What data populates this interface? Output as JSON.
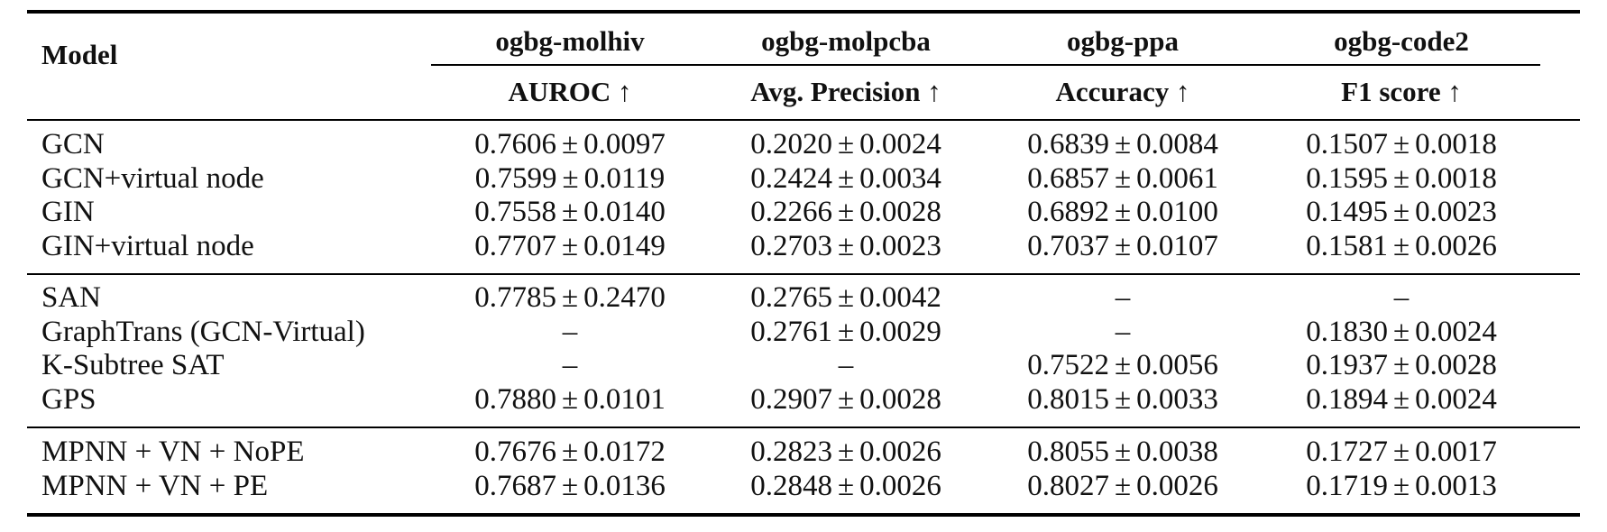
{
  "table": {
    "header": {
      "model_label": "Model",
      "datasets": [
        "ogbg-molhiv",
        "ogbg-molpcba",
        "ogbg-ppa",
        "ogbg-code2"
      ],
      "metrics": [
        "AUROC ↑",
        "Avg. Precision ↑",
        "Accuracy ↑",
        "F1 score ↑"
      ]
    },
    "pm_symbol": "±",
    "dash": "–",
    "groups": [
      {
        "rows": [
          {
            "model": "GCN",
            "cells": [
              [
                "0.7606",
                "0.0097"
              ],
              [
                "0.2020",
                "0.0024"
              ],
              [
                "0.6839",
                "0.0084"
              ],
              [
                "0.1507",
                "0.0018"
              ]
            ]
          },
          {
            "model": "GCN+virtual node",
            "cells": [
              [
                "0.7599",
                "0.0119"
              ],
              [
                "0.2424",
                "0.0034"
              ],
              [
                "0.6857",
                "0.0061"
              ],
              [
                "0.1595",
                "0.0018"
              ]
            ]
          },
          {
            "model": "GIN",
            "cells": [
              [
                "0.7558",
                "0.0140"
              ],
              [
                "0.2266",
                "0.0028"
              ],
              [
                "0.6892",
                "0.0100"
              ],
              [
                "0.1495",
                "0.0023"
              ]
            ]
          },
          {
            "model": "GIN+virtual node",
            "cells": [
              [
                "0.7707",
                "0.0149"
              ],
              [
                "0.2703",
                "0.0023"
              ],
              [
                "0.7037",
                "0.0107"
              ],
              [
                "0.1581",
                "0.0026"
              ]
            ]
          }
        ]
      },
      {
        "rows": [
          {
            "model": "SAN",
            "cells": [
              [
                "0.7785",
                "0.2470"
              ],
              [
                "0.2765",
                "0.0042"
              ],
              null,
              null
            ]
          },
          {
            "model": "GraphTrans (GCN-Virtual)",
            "cells": [
              null,
              [
                "0.2761",
                "0.0029"
              ],
              null,
              [
                "0.1830",
                "0.0024"
              ]
            ]
          },
          {
            "model": "K-Subtree SAT",
            "cells": [
              null,
              null,
              [
                "0.7522",
                "0.0056"
              ],
              [
                "0.1937",
                "0.0028"
              ]
            ]
          },
          {
            "model": "GPS",
            "cells": [
              [
                "0.7880",
                "0.0101"
              ],
              [
                "0.2907",
                "0.0028"
              ],
              [
                "0.8015",
                "0.0033"
              ],
              [
                "0.1894",
                "0.0024"
              ]
            ]
          }
        ]
      },
      {
        "rows": [
          {
            "model": "MPNN + VN + NoPE",
            "cells": [
              [
                "0.7676",
                "0.0172"
              ],
              [
                "0.2823",
                "0.0026"
              ],
              [
                "0.8055",
                "0.0038"
              ],
              [
                "0.1727",
                "0.0017"
              ]
            ]
          },
          {
            "model": "MPNN + VN + PE",
            "cells": [
              [
                "0.7687",
                "0.0136"
              ],
              [
                "0.2848",
                "0.0026"
              ],
              [
                "0.8027",
                "0.0026"
              ],
              [
                "0.1719",
                "0.0013"
              ]
            ]
          }
        ]
      }
    ]
  }
}
